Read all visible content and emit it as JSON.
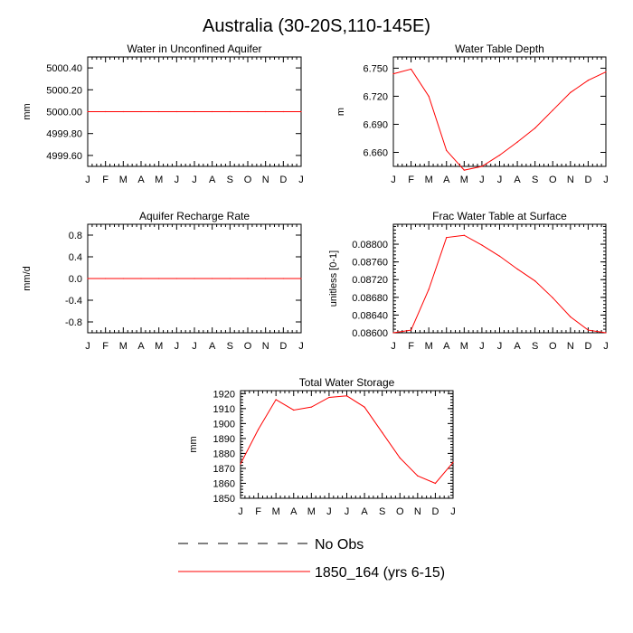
{
  "title": "Australia (30-20S,110-145E)",
  "colors": {
    "model": "#ff0000",
    "obs": "#000000"
  },
  "legend": {
    "obs_label": "No Obs",
    "model_label": "1850_164 (yrs 6-15)"
  },
  "chart_data": [
    {
      "type": "line",
      "title": "Water in Unconfined Aquifer",
      "xlabel": "",
      "ylabel": "mm",
      "categories": [
        "J",
        "F",
        "M",
        "A",
        "M",
        "J",
        "J",
        "A",
        "S",
        "O",
        "N",
        "D",
        "J"
      ],
      "ylim": [
        4999.5,
        5000.5
      ],
      "yticks": [
        4999.6,
        4999.8,
        5000.0,
        5000.2,
        5000.4
      ],
      "ytick_labels": [
        "4999.60",
        "4999.80",
        "5000.00",
        "5000.20",
        "5000.40"
      ],
      "series": [
        {
          "name": "1850_164 (yrs 6-15)",
          "values": [
            5000,
            5000,
            5000,
            5000,
            5000,
            5000,
            5000,
            5000,
            5000,
            5000,
            5000,
            5000,
            5000
          ]
        }
      ]
    },
    {
      "type": "line",
      "title": "Water Table Depth",
      "xlabel": "",
      "ylabel": "m",
      "categories": [
        "J",
        "F",
        "M",
        "A",
        "M",
        "J",
        "J",
        "A",
        "S",
        "O",
        "N",
        "D",
        "J"
      ],
      "ylim": [
        6.645,
        6.762
      ],
      "yticks": [
        6.66,
        6.69,
        6.72,
        6.75
      ],
      "ytick_labels": [
        "6.660",
        "6.690",
        "6.720",
        "6.750"
      ],
      "series": [
        {
          "name": "1850_164 (yrs 6-15)",
          "values": [
            6.744,
            6.749,
            6.72,
            6.662,
            6.641,
            6.645,
            6.657,
            6.671,
            6.686,
            6.705,
            6.724,
            6.737,
            6.746
          ]
        }
      ]
    },
    {
      "type": "line",
      "title": "Aquifer Recharge Rate",
      "xlabel": "",
      "ylabel": "mm/d",
      "categories": [
        "J",
        "F",
        "M",
        "A",
        "M",
        "J",
        "J",
        "A",
        "S",
        "O",
        "N",
        "D",
        "J"
      ],
      "ylim": [
        -1.0,
        1.0
      ],
      "yticks": [
        -0.8,
        -0.4,
        0.0,
        0.4,
        0.8
      ],
      "ytick_labels": [
        "-0.8",
        "-0.4",
        "0.0",
        "0.4",
        "0.8"
      ],
      "series": [
        {
          "name": "1850_164 (yrs 6-15)",
          "values": [
            0,
            0,
            0,
            0,
            0,
            0,
            0,
            0,
            0,
            0,
            0,
            0,
            0
          ]
        }
      ]
    },
    {
      "type": "line",
      "title": "Frac Water Table at Surface",
      "xlabel": "",
      "ylabel": "unitless [0-1]",
      "categories": [
        "J",
        "F",
        "M",
        "A",
        "M",
        "J",
        "J",
        "A",
        "S",
        "O",
        "N",
        "D",
        "J"
      ],
      "ylim": [
        0.086,
        0.08845
      ],
      "yticks": [
        0.086,
        0.0864,
        0.0868,
        0.0872,
        0.0876,
        0.088
      ],
      "ytick_labels": [
        "0.08600",
        "0.08640",
        "0.08680",
        "0.08720",
        "0.08760",
        "0.08800"
      ],
      "series": [
        {
          "name": "1850_164 (yrs 6-15)",
          "values": [
            0.086,
            0.08606,
            0.08698,
            0.08815,
            0.0882,
            0.08798,
            0.08773,
            0.08744,
            0.08717,
            0.08679,
            0.08636,
            0.08606,
            0.086
          ]
        }
      ]
    },
    {
      "type": "line",
      "title": "Total Water Storage",
      "xlabel": "",
      "ylabel": "mm",
      "categories": [
        "J",
        "F",
        "M",
        "A",
        "M",
        "J",
        "J",
        "A",
        "S",
        "O",
        "N",
        "D",
        "J"
      ],
      "ylim": [
        1850,
        1922
      ],
      "yticks": [
        1850,
        1860,
        1870,
        1880,
        1890,
        1900,
        1910,
        1920
      ],
      "ytick_labels": [
        "1850",
        "1860",
        "1870",
        "1880",
        "1890",
        "1900",
        "1910",
        "1920"
      ],
      "series": [
        {
          "name": "1850_164 (yrs 6-15)",
          "values": [
            1873,
            1896,
            1916,
            1909,
            1911,
            1917.5,
            1918.5,
            1911,
            1894,
            1877,
            1865,
            1860,
            1874
          ]
        }
      ]
    }
  ]
}
